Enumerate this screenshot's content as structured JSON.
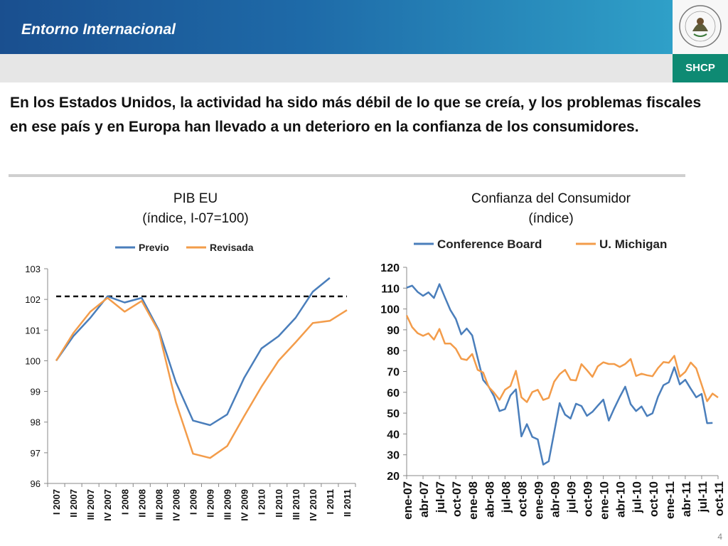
{
  "header": {
    "section_title": "Entorno Internacional",
    "brand": "SHCP",
    "seal_text": "ESTADOS UNIDOS MEXICANOS"
  },
  "headline": "En los Estados Unidos, la actividad ha sido más débil de lo que se creía, y los problemas fiscales en ese país y en Europa han llevado a un deterioro en la confianza de los consumidores.",
  "page_number": "4",
  "colors": {
    "blue": "#4a7ebb",
    "orange": "#f39c4a",
    "banner": "#1e6aa8",
    "shcp": "#0e8a73"
  },
  "left_chart": {
    "title": "PIB EU",
    "subtitle": "(índice, I-07=100)"
  },
  "right_chart": {
    "title": "Confianza del Consumidor",
    "subtitle": "(índice)"
  },
  "chart_data": [
    {
      "type": "line",
      "title": "PIB EU",
      "subtitle": "(índice, I-07=100)",
      "categories": [
        "I 2007",
        "II 2007",
        "III 2007",
        "IV 2007",
        "I 2008",
        "II 2008",
        "III 2008",
        "IV 2008",
        "I 2009",
        "II 2009",
        "III 2009",
        "IV 2009",
        "I 2010",
        "II 2010",
        "III 2010",
        "IV 2010",
        "I 2011",
        "II 2011"
      ],
      "series": [
        {
          "name": "Previo",
          "color": "#4a7ebb",
          "values": [
            100.0,
            100.8,
            101.4,
            102.1,
            101.9,
            102.05,
            101.0,
            99.3,
            98.05,
            97.9,
            98.25,
            99.45,
            100.4,
            100.8,
            101.4,
            102.25,
            102.7,
            null
          ]
        },
        {
          "name": "Revisada",
          "color": "#f39c4a",
          "values": [
            100.0,
            100.9,
            101.6,
            102.05,
            101.6,
            101.95,
            100.95,
            98.65,
            96.97,
            96.83,
            97.22,
            98.2,
            99.15,
            100.0,
            100.6,
            101.23,
            101.3,
            101.65
          ]
        }
      ],
      "reference_line": {
        "value": 102.1,
        "style": "dashed"
      },
      "ylim": [
        96,
        103
      ],
      "yticks": [
        96,
        97,
        98,
        99,
        100,
        101,
        102,
        103
      ],
      "legend": "top",
      "grid": false
    },
    {
      "type": "line",
      "title": "Confianza del Consumidor",
      "subtitle": "(índice)",
      "x": [
        "ene-07",
        "feb-07",
        "mar-07",
        "abr-07",
        "may-07",
        "jun-07",
        "jul-07",
        "ago-07",
        "sep-07",
        "oct-07",
        "nov-07",
        "dic-07",
        "ene-08",
        "feb-08",
        "mar-08",
        "abr-08",
        "may-08",
        "jun-08",
        "jul-08",
        "ago-08",
        "sep-08",
        "oct-08",
        "nov-08",
        "dic-08",
        "ene-09",
        "feb-09",
        "mar-09",
        "abr-09",
        "may-09",
        "jun-09",
        "jul-09",
        "ago-09",
        "sep-09",
        "oct-09",
        "nov-09",
        "dic-09",
        "ene-10",
        "feb-10",
        "mar-10",
        "abr-10",
        "may-10",
        "jun-10",
        "jul-10",
        "ago-10",
        "sep-10",
        "oct-10",
        "nov-10",
        "dic-10",
        "ene-11",
        "feb-11",
        "mar-11",
        "abr-11",
        "may-11",
        "jun-11",
        "jul-11",
        "ago-11",
        "sep-11",
        "oct-11"
      ],
      "xtick_labels": [
        "ene-07",
        "abr-07",
        "jul-07",
        "oct-07",
        "ene-08",
        "abr-08",
        "jul-08",
        "oct-08",
        "ene-09",
        "abr-09",
        "jul-09",
        "oct-09",
        "ene-10",
        "abr-10",
        "jul-10",
        "oct-10",
        "ene-11",
        "abr-11",
        "jul-11",
        "oct-11"
      ],
      "series": [
        {
          "name": "Conference Board",
          "color": "#4a7ebb",
          "values": [
            110.2,
            111.2,
            108.2,
            106.3,
            108.0,
            105.3,
            111.9,
            105.6,
            99.5,
            95.2,
            87.8,
            90.6,
            87.3,
            76.4,
            65.9,
            62.8,
            58.1,
            51.0,
            51.9,
            58.5,
            61.4,
            38.8,
            44.7,
            38.6,
            37.4,
            25.3,
            26.9,
            40.8,
            54.8,
            49.3,
            47.4,
            54.5,
            53.4,
            48.7,
            50.6,
            53.6,
            56.5,
            46.4,
            52.3,
            57.7,
            62.7,
            54.3,
            51.0,
            53.2,
            48.6,
            49.9,
            57.8,
            63.4,
            64.8,
            72.0,
            63.8,
            66.0,
            61.7,
            57.6,
            59.2,
            45.2,
            45.3,
            null
          ]
        },
        {
          "name": "U. Michigan",
          "color": "#f39c4a",
          "values": [
            96.9,
            91.3,
            88.4,
            87.1,
            88.3,
            85.3,
            90.4,
            83.4,
            83.4,
            80.9,
            76.1,
            75.5,
            78.4,
            70.8,
            69.5,
            62.6,
            59.8,
            56.4,
            61.2,
            63.0,
            70.3,
            57.6,
            55.3,
            60.1,
            61.2,
            56.3,
            57.3,
            65.1,
            68.7,
            70.8,
            66.0,
            65.7,
            73.5,
            70.6,
            67.4,
            72.5,
            74.4,
            73.6,
            73.6,
            72.2,
            73.6,
            76.0,
            67.8,
            68.9,
            68.2,
            67.7,
            71.6,
            74.5,
            74.2,
            77.5,
            67.5,
            69.8,
            74.3,
            71.5,
            63.7,
            55.7,
            59.4,
            57.5
          ]
        }
      ],
      "ylim": [
        20,
        120
      ],
      "yticks": [
        20,
        30,
        40,
        50,
        60,
        70,
        80,
        90,
        100,
        110,
        120
      ],
      "legend": "top",
      "grid": false
    }
  ]
}
